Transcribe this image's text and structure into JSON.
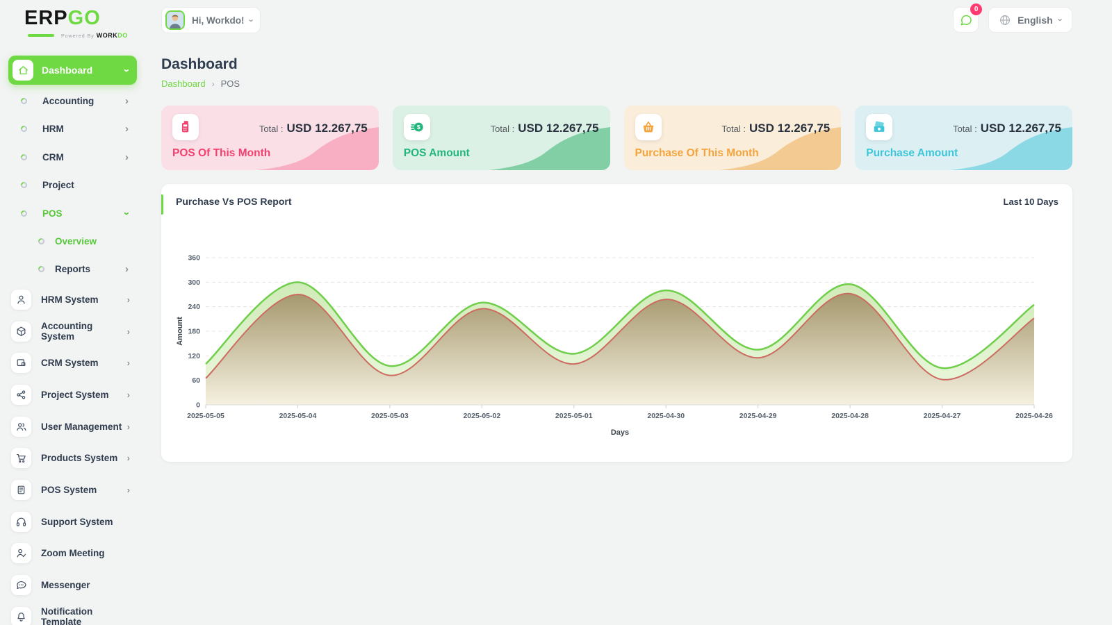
{
  "brand": {
    "logo_primary": "ERP",
    "logo_accent": "GO",
    "powered_by": "Powered By",
    "powered_brand": "WORK",
    "powered_brand_accent": "DO"
  },
  "header": {
    "greeting": "Hi, Workdo!",
    "message_badge": "0",
    "language": "English"
  },
  "page": {
    "title": "Dashboard",
    "breadcrumb_root": "Dashboard",
    "breadcrumb_current": "POS"
  },
  "sidebar": {
    "dashboard_label": "Dashboard",
    "menu": [
      {
        "label": "Accounting"
      },
      {
        "label": "HRM"
      },
      {
        "label": "CRM"
      },
      {
        "label": "Project"
      },
      {
        "label": "POS"
      }
    ],
    "pos_children": [
      {
        "label": "Overview"
      },
      {
        "label": "Reports"
      }
    ],
    "systems": [
      {
        "label": "HRM System",
        "icon": "user-icon"
      },
      {
        "label": "Accounting System",
        "icon": "cube-icon"
      },
      {
        "label": "CRM System",
        "icon": "id-card-icon"
      },
      {
        "label": "Project System",
        "icon": "share-icon"
      },
      {
        "label": "User Management",
        "icon": "users-icon"
      },
      {
        "label": "Products System",
        "icon": "cart-icon"
      },
      {
        "label": "POS System",
        "icon": "terminal-icon"
      },
      {
        "label": "Support System",
        "icon": "headset-icon"
      },
      {
        "label": "Zoom Meeting",
        "icon": "user-check-icon"
      },
      {
        "label": "Messenger",
        "icon": "chat-icon"
      },
      {
        "label": "Notification Template",
        "icon": "bell-icon"
      }
    ]
  },
  "cards": [
    {
      "title": "POS Of This Month",
      "total_label": "Total :",
      "amount": "USD 12.267,75",
      "icon": "pos-terminal-icon",
      "accent": "#F4406E",
      "bg": "#FBDFE7",
      "wave": "#F8AFC3"
    },
    {
      "title": "POS Amount",
      "total_label": "Total :",
      "amount": "USD 12.267,75",
      "icon": "dollar-coin-icon",
      "accent": "#23B57C",
      "bg": "#DCF1E6",
      "wave": "#83CFA5"
    },
    {
      "title": "Purchase Of This Month",
      "total_label": "Total :",
      "amount": "USD 12.267,75",
      "icon": "basket-icon",
      "accent": "#F5A43C",
      "bg": "#FAEDDA",
      "wave": "#F3CB92"
    },
    {
      "title": "Purchase Amount",
      "total_label": "Total :",
      "amount": "USD 12.267,75",
      "icon": "banknote-icon",
      "accent": "#3EC6D8",
      "bg": "#DCF0F4",
      "wave": "#8BD9E5"
    }
  ],
  "chart_card": {
    "title": "Purchase Vs POS Report",
    "range": "Last 10 Days"
  },
  "chart_data": {
    "type": "area",
    "x": [
      "2025-05-05",
      "2025-05-04",
      "2025-05-03",
      "2025-05-02",
      "2025-05-01",
      "2025-04-30",
      "2025-04-29",
      "2025-04-28",
      "2025-04-27",
      "2025-04-26"
    ],
    "series": [
      {
        "name": "Purchase",
        "color": "#6FCE4A",
        "fill_top": "#CDEAB4",
        "fill_bottom": "#ECF8DF",
        "values": [
          100,
          300,
          95,
          250,
          125,
          280,
          135,
          295,
          90,
          245
        ]
      },
      {
        "name": "POS",
        "color": "#CC6B60",
        "fill_top": "#A3946A",
        "fill_bottom": "#F6F0E0",
        "values": [
          65,
          270,
          72,
          235,
          100,
          258,
          115,
          272,
          62,
          212
        ]
      }
    ],
    "xlabel": "Days",
    "ylabel": "Amount",
    "ylim": [
      0,
      390
    ],
    "yticks": [
      0,
      60,
      120,
      180,
      240,
      300,
      360
    ],
    "grid": "horizontal-dashed",
    "legend": "none",
    "text_color": "#55606C"
  }
}
